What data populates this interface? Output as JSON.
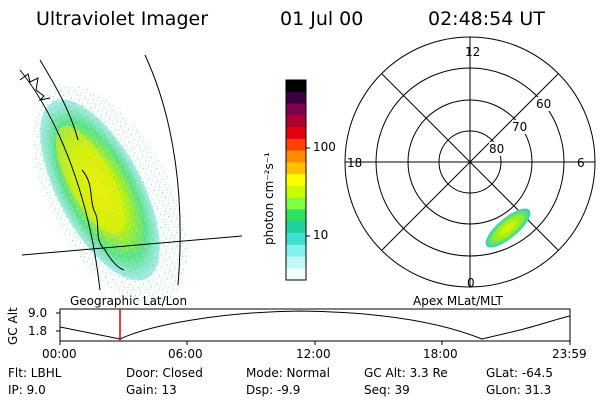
{
  "header": {
    "title": "Ultraviolet Imager",
    "date": "01 Jul 00",
    "time": "02:48:54 UT"
  },
  "geo_panel": {
    "label": "Geographic Lat/Lon"
  },
  "colorbar": {
    "unit_label": "photon cm⁻²s⁻¹",
    "ticks": [
      "100",
      "10"
    ],
    "colors": [
      "#000000",
      "#3a0040",
      "#800050",
      "#b00030",
      "#e00010",
      "#ff4000",
      "#ff8c00",
      "#ffc000",
      "#ffff00",
      "#c8ff00",
      "#80ff40",
      "#30e060",
      "#20d0a0",
      "#40e0d0",
      "#80f0f0",
      "#c0f8f8",
      "#f0ffff"
    ]
  },
  "polar_panel": {
    "label": "Apex MLat/MLT",
    "mlt_labels": {
      "top": "12",
      "left": "18",
      "right": "6",
      "bottom": "0"
    },
    "lat_labels": [
      "60",
      "70",
      "80"
    ]
  },
  "altitude_plot": {
    "ylabel": "GC Alt",
    "yticks": [
      "9.0",
      "1.8"
    ],
    "xticks": [
      "00:00",
      "06:00",
      "12:00",
      "18:00",
      "23:59"
    ],
    "marker_color": "#e00000"
  },
  "info": {
    "flt": "Flt: LBHL",
    "ip": "IP:  9.0",
    "door": "Door: Closed",
    "gain": "Gain: 13",
    "mode": "Mode: Normal",
    "dsp": "Dsp:    -9.9",
    "gcalt": "GC Alt: 3.3 Re",
    "seq": "Seq: 39",
    "glat": "GLat: -64.5",
    "glon": "GLon:  31.3"
  }
}
